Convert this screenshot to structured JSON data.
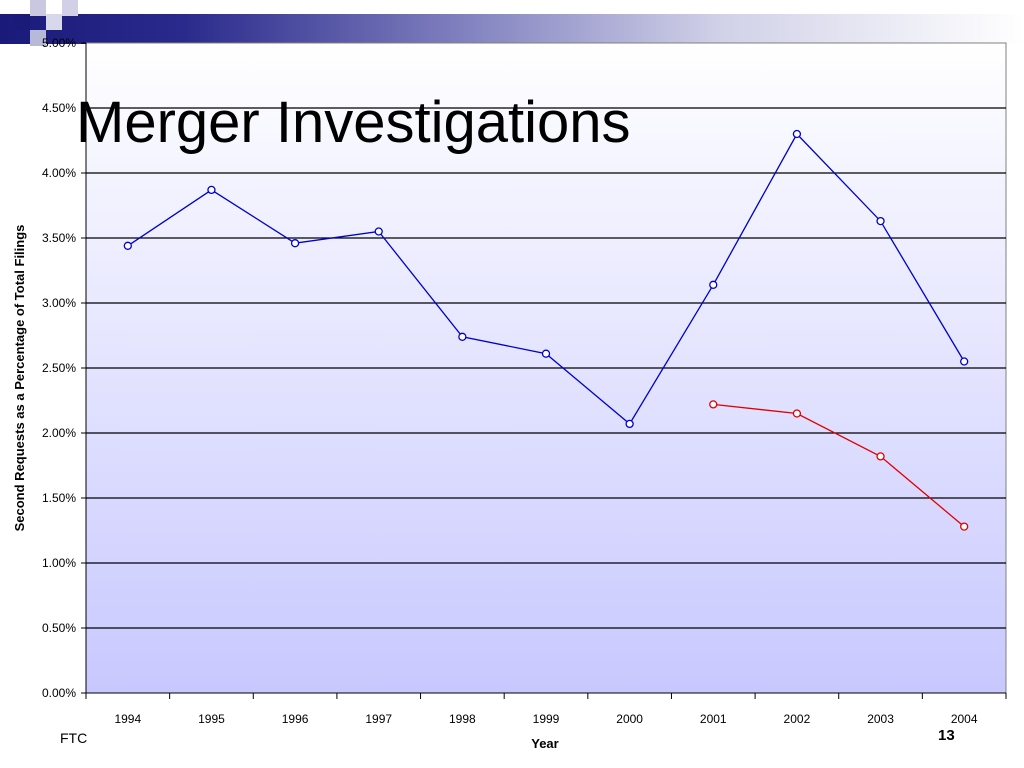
{
  "slide": {
    "title": "Merger Investigations",
    "footer": "FTC",
    "page_number": "13"
  },
  "colors": {
    "series_primary": "#0000cc",
    "series_secondary": "#e00000",
    "plot_bg_top": "#ffffff",
    "plot_bg_bottom": "#c8c8ff",
    "header_accent": "#1a1a7a"
  },
  "chart_data": {
    "type": "line",
    "title": "",
    "xlabel": "Year",
    "ylabel": "Second Requests as a Percentage of Total Filings",
    "categories": [
      "1994",
      "1995",
      "1996",
      "1997",
      "1998",
      "1999",
      "2000",
      "2001",
      "2002",
      "2003",
      "2004"
    ],
    "ylim": [
      0,
      0.05
    ],
    "yticks": [
      "0.00%",
      "0.50%",
      "1.00%",
      "1.50%",
      "2.00%",
      "2.50%",
      "3.00%",
      "3.50%",
      "4.00%",
      "4.50%",
      "5.00%"
    ],
    "grid": true,
    "series": [
      {
        "values": [
          0.0344,
          0.0387,
          0.0346,
          0.0355,
          0.0274,
          0.0261,
          0.0207,
          0.0314,
          0.043,
          0.0363,
          0.0255
        ]
      },
      {
        "values": [
          null,
          null,
          null,
          null,
          null,
          null,
          null,
          0.0222,
          0.0215,
          0.0182,
          0.0128
        ]
      }
    ]
  }
}
